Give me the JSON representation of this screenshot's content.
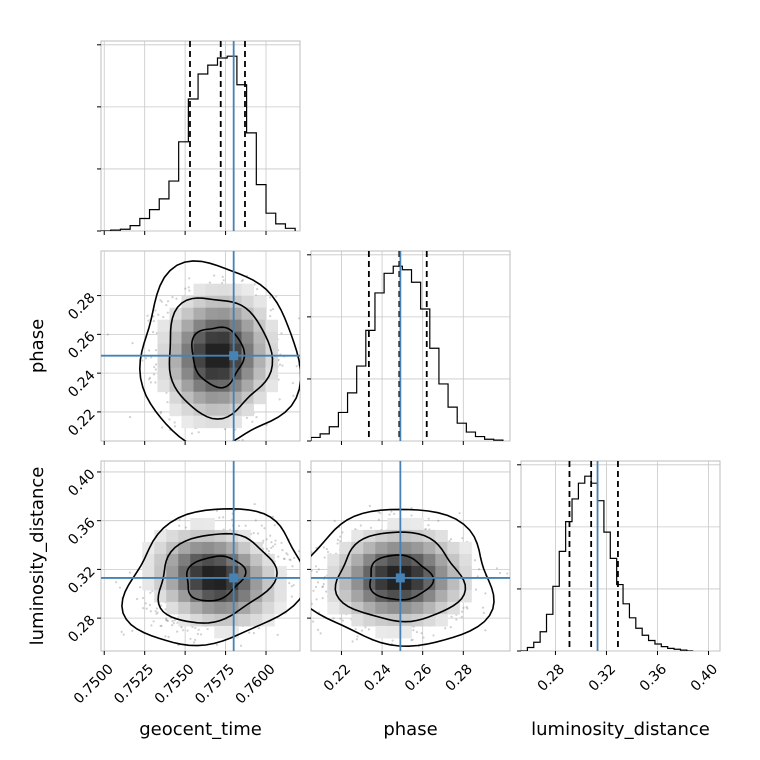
{
  "chart_data": {
    "type": "corner",
    "parameters": [
      "geocent_time",
      "phase",
      "luminosity_distance"
    ],
    "truths": [
      0.758,
      0.249,
      0.313
    ],
    "truth_color": "#4682b4",
    "contour_levels": [
      0.39,
      0.86,
      0.99
    ],
    "quantile_lines": [
      0.16,
      0.5,
      0.84
    ],
    "grid": true,
    "axes": {
      "geocent_time": {
        "range": [
          0.7498,
          0.7621
        ],
        "ticks": [
          0.75,
          0.7525,
          0.755,
          0.7575,
          0.76
        ],
        "tick_labels": [
          "0.7500",
          "0.7525",
          "0.7550",
          "0.7575",
          "0.7600"
        ]
      },
      "phase": {
        "range": [
          0.205,
          0.303
        ],
        "ticks": [
          0.22,
          0.24,
          0.26,
          0.28
        ],
        "tick_labels": [
          "0.22",
          "0.24",
          "0.26",
          "0.28"
        ]
      },
      "luminosity_distance": {
        "range": [
          0.253,
          0.409
        ],
        "ticks": [
          0.28,
          0.32,
          0.36,
          0.4
        ],
        "tick_labels": [
          "0.28",
          "0.32",
          "0.36",
          "0.40"
        ]
      }
    },
    "marginals": [
      {
        "parameter": "geocent_time",
        "quantiles": [
          0.7553,
          0.7572,
          0.7587
        ],
        "bin_edges": [
          0.7498,
          0.7504,
          0.751,
          0.7516,
          0.7522,
          0.7528,
          0.7534,
          0.754,
          0.7546,
          0.7552,
          0.7558,
          0.7564,
          0.757,
          0.7576,
          0.7582,
          0.7588,
          0.7594,
          0.76,
          0.7606,
          0.7612,
          0.7618
        ],
        "counts": [
          0,
          0.005,
          0.01,
          0.03,
          0.07,
          0.12,
          0.18,
          0.28,
          0.5,
          0.74,
          0.88,
          0.93,
          0.97,
          0.98,
          0.82,
          0.55,
          0.26,
          0.1,
          0.04,
          0.015
        ]
      },
      {
        "parameter": "phase",
        "quantiles": [
          0.2335,
          0.2485,
          0.262
        ],
        "bin_edges": [
          0.205,
          0.2095,
          0.214,
          0.2185,
          0.223,
          0.2275,
          0.232,
          0.2365,
          0.241,
          0.2455,
          0.25,
          0.2545,
          0.259,
          0.2635,
          0.268,
          0.2725,
          0.277,
          0.2815,
          0.286,
          0.2905,
          0.295,
          0.2995
        ],
        "counts": [
          0.02,
          0.04,
          0.08,
          0.16,
          0.27,
          0.42,
          0.62,
          0.83,
          0.94,
          0.98,
          0.96,
          0.89,
          0.74,
          0.52,
          0.32,
          0.19,
          0.1,
          0.05,
          0.025,
          0.01,
          0.005
        ]
      },
      {
        "parameter": "luminosity_distance",
        "quantiles": [
          0.291,
          0.308,
          0.329
        ],
        "bin_edges": [
          0.253,
          0.258,
          0.263,
          0.268,
          0.273,
          0.278,
          0.283,
          0.288,
          0.293,
          0.298,
          0.303,
          0.308,
          0.313,
          0.318,
          0.323,
          0.328,
          0.333,
          0.338,
          0.343,
          0.348,
          0.353,
          0.358,
          0.363,
          0.368,
          0.373,
          0.378,
          0.383,
          0.388
        ],
        "counts": [
          0,
          0.02,
          0.05,
          0.11,
          0.21,
          0.37,
          0.57,
          0.74,
          0.87,
          0.96,
          1.0,
          0.96,
          0.86,
          0.68,
          0.53,
          0.38,
          0.27,
          0.19,
          0.13,
          0.09,
          0.06,
          0.04,
          0.025,
          0.015,
          0.01,
          0.005,
          0
        ]
      }
    ],
    "posterior_2d": [
      {
        "x": "geocent_time",
        "y": "phase",
        "mean": [
          0.757,
          0.249
        ],
        "std": [
          0.0016,
          0.0155
        ],
        "corr": -0.05
      },
      {
        "x": "geocent_time",
        "y": "luminosity_distance",
        "mean": [
          0.7568,
          0.313
        ],
        "std": [
          0.0018,
          0.0185
        ],
        "corr": 0.2
      },
      {
        "x": "phase",
        "y": "luminosity_distance",
        "mean": [
          0.2485,
          0.313
        ],
        "std": [
          0.0155,
          0.0185
        ],
        "corr": -0.05
      }
    ]
  }
}
